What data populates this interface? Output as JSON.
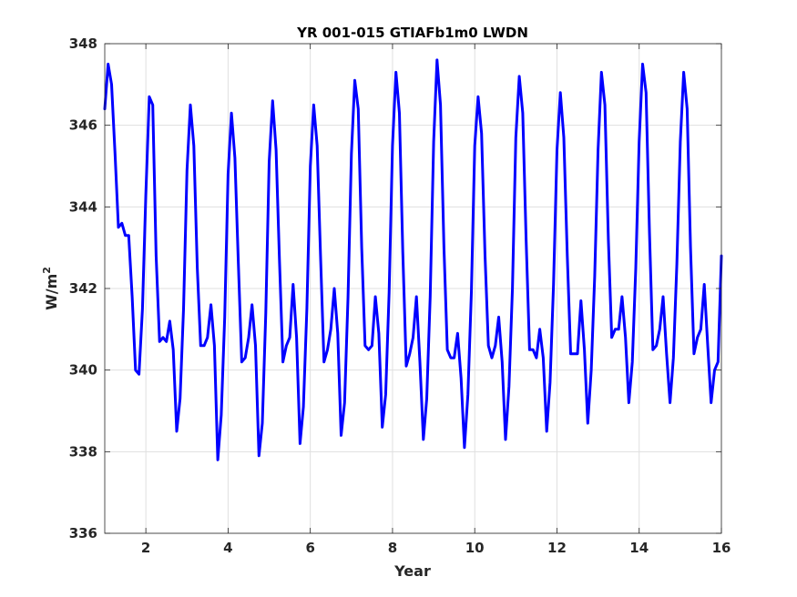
{
  "chart_data": {
    "type": "line",
    "title": "YR 001-015 GTIAFb1m0 LWDN",
    "xlabel": "Year",
    "ylabel": "W/m",
    "ylabel_superscript": "2",
    "xlim": [
      1,
      16
    ],
    "ylim": [
      336,
      348
    ],
    "xticks": [
      2,
      4,
      6,
      8,
      10,
      12,
      14,
      16
    ],
    "yticks": [
      336,
      338,
      340,
      342,
      344,
      346,
      348
    ],
    "grid": true,
    "series_color": "#0000ff",
    "series": [
      {
        "x": [
          1.0,
          1.083,
          1.167,
          1.25,
          1.333,
          1.417,
          1.5,
          1.583,
          1.667,
          1.75,
          1.833,
          1.917,
          2.0,
          2.083,
          2.167,
          2.25,
          2.333,
          2.417,
          2.5,
          2.583,
          2.667,
          2.75,
          2.833,
          2.917,
          3.0,
          3.083,
          3.167,
          3.25,
          3.333,
          3.417,
          3.5,
          3.583,
          3.667,
          3.75,
          3.833,
          3.917,
          4.0,
          4.083,
          4.167,
          4.25,
          4.333,
          4.417,
          4.5,
          4.583,
          4.667,
          4.75,
          4.833,
          4.917,
          5.0,
          5.083,
          5.167,
          5.25,
          5.333,
          5.417,
          5.5,
          5.583,
          5.667,
          5.75,
          5.833,
          5.917,
          6.0,
          6.083,
          6.167,
          6.25,
          6.333,
          6.417,
          6.5,
          6.583,
          6.667,
          6.75,
          6.833,
          6.917,
          7.0,
          7.083,
          7.167,
          7.25,
          7.333,
          7.417,
          7.5,
          7.583,
          7.667,
          7.75,
          7.833,
          7.917,
          8.0,
          8.083,
          8.167,
          8.25,
          8.333,
          8.417,
          8.5,
          8.583,
          8.667,
          8.75,
          8.833,
          8.917,
          9.0,
          9.083,
          9.167,
          9.25,
          9.333,
          9.417,
          9.5,
          9.583,
          9.667,
          9.75,
          9.833,
          9.917,
          10.0,
          10.083,
          10.167,
          10.25,
          10.333,
          10.417,
          10.5,
          10.583,
          10.667,
          10.75,
          10.833,
          10.917,
          11.0,
          11.083,
          11.167,
          11.25,
          11.333,
          11.417,
          11.5,
          11.583,
          11.667,
          11.75,
          11.833,
          11.917,
          12.0,
          12.083,
          12.167,
          12.25,
          12.333,
          12.417,
          12.5,
          12.583,
          12.667,
          12.75,
          12.833,
          12.917,
          13.0,
          13.083,
          13.167,
          13.25,
          13.333,
          13.417,
          13.5,
          13.583,
          13.667,
          13.75,
          13.833,
          13.917,
          14.0,
          14.083,
          14.167,
          14.25,
          14.333,
          14.417,
          14.5,
          14.583,
          14.667,
          14.75,
          14.833,
          14.917,
          15.0,
          15.083,
          15.167,
          15.25,
          15.333,
          15.417,
          15.5,
          15.583,
          15.667,
          15.75,
          15.833,
          15.917,
          16.0
        ],
        "y": [
          346.4,
          347.5,
          347.0,
          345.3,
          343.5,
          343.6,
          343.3,
          343.3,
          341.8,
          340.0,
          339.9,
          341.5,
          344.3,
          346.7,
          346.5,
          342.8,
          340.7,
          340.8,
          340.7,
          341.2,
          340.5,
          338.5,
          339.3,
          341.5,
          344.9,
          346.5,
          345.5,
          342.5,
          340.6,
          340.6,
          340.8,
          341.6,
          340.6,
          337.8,
          338.9,
          341.3,
          344.8,
          346.3,
          345.2,
          342.6,
          340.2,
          340.3,
          340.8,
          341.6,
          340.6,
          337.9,
          338.7,
          341.4,
          345.1,
          346.6,
          345.4,
          342.7,
          340.2,
          340.6,
          340.8,
          342.1,
          340.8,
          338.2,
          339.1,
          341.5,
          345.0,
          346.5,
          345.5,
          342.8,
          340.2,
          340.5,
          341.0,
          342.0,
          340.9,
          338.4,
          339.2,
          341.8,
          345.3,
          347.1,
          346.4,
          343.0,
          340.6,
          340.5,
          340.6,
          341.8,
          340.9,
          338.6,
          339.4,
          341.9,
          345.5,
          347.3,
          346.3,
          342.9,
          340.1,
          340.4,
          340.8,
          341.8,
          340.2,
          338.3,
          339.3,
          341.8,
          345.6,
          347.6,
          346.5,
          343.0,
          340.5,
          340.3,
          340.3,
          340.9,
          339.8,
          338.1,
          339.4,
          341.9,
          345.5,
          346.7,
          345.8,
          342.8,
          340.6,
          340.3,
          340.6,
          341.3,
          340.2,
          338.3,
          339.6,
          342.0,
          345.7,
          347.2,
          346.3,
          343.2,
          340.5,
          340.5,
          340.3,
          341.0,
          340.3,
          338.5,
          339.7,
          342.1,
          345.4,
          346.8,
          345.7,
          342.8,
          340.4,
          340.4,
          340.4,
          341.7,
          340.5,
          338.7,
          340.0,
          342.3,
          345.4,
          347.3,
          346.5,
          343.2,
          340.8,
          341.0,
          341.0,
          341.8,
          340.8,
          339.2,
          340.2,
          342.5,
          345.6,
          347.5,
          346.8,
          343.4,
          340.5,
          340.6,
          341.0,
          341.8,
          340.4,
          339.2,
          340.3,
          342.6,
          345.6,
          347.3,
          346.4,
          343.0,
          340.4,
          340.8,
          341.0,
          342.1,
          340.6,
          339.2,
          340.0,
          340.2,
          342.8
        ]
      }
    ]
  }
}
